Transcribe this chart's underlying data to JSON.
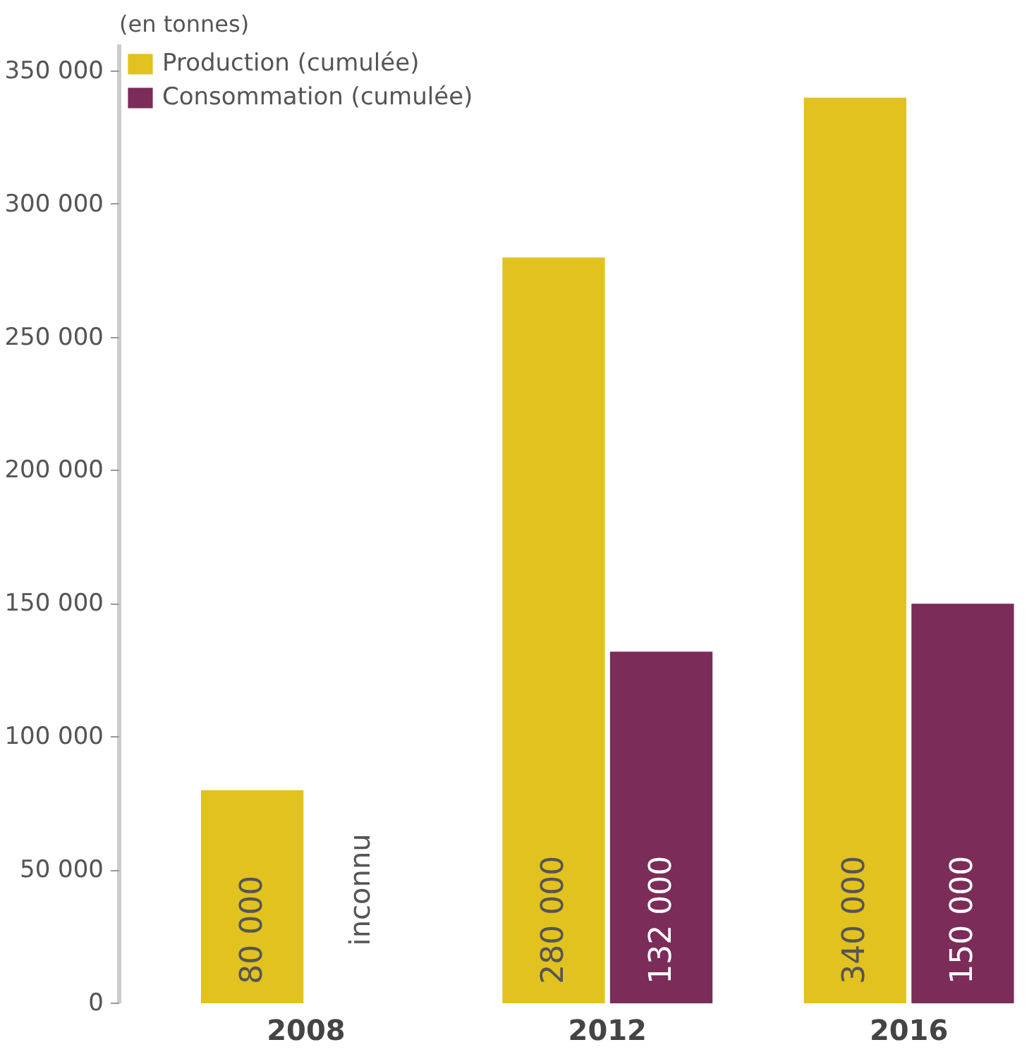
{
  "chart_data": {
    "type": "bar",
    "ylabel": "(en tonnes)",
    "categories": [
      "2008",
      "2012",
      "2016"
    ],
    "series": [
      {
        "name": "Production (cumulée)",
        "color": "#e2c21e",
        "values": [
          80000,
          280000,
          340000
        ],
        "value_labels": [
          "80 000",
          "280 000",
          "340 000"
        ]
      },
      {
        "name": "Consommation (cumulée)",
        "color": "#7b2c58",
        "values": [
          null,
          132000,
          150000
        ],
        "value_labels": [
          null,
          "132 000",
          "150 000"
        ]
      }
    ],
    "ylim": [
      0,
      360000
    ],
    "yticks": [
      {
        "value": 0,
        "label": "0"
      },
      {
        "value": 50000,
        "label": "50 000"
      },
      {
        "value": 100000,
        "label": "100 000"
      },
      {
        "value": 150000,
        "label": "150 000"
      },
      {
        "value": 200000,
        "label": "200 000"
      },
      {
        "value": 250000,
        "label": "250 000"
      },
      {
        "value": 300000,
        "label": "300 000"
      },
      {
        "value": 350000,
        "label": "350 000"
      }
    ],
    "annotations": [
      {
        "text": "inconnu",
        "x": "2008"
      }
    ],
    "legend": "top left",
    "grid": false
  }
}
